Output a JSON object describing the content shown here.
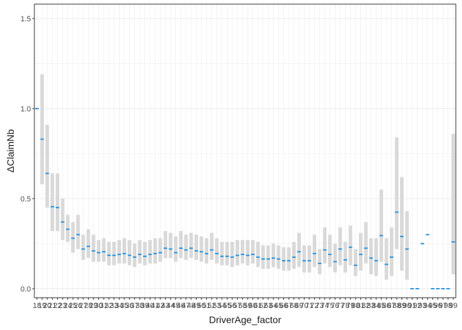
{
  "chart_data": {
    "type": "errorbar",
    "xlabel": "DriverAge_factor",
    "ylabel": "ΔClaimNb",
    "ylim": [
      -0.05,
      1.58
    ],
    "yticks": [
      0.0,
      0.5,
      1.0,
      1.5
    ],
    "ytick_labels": [
      "0.0",
      "0.5",
      "1.0",
      "1.5"
    ],
    "grid": true,
    "colors": {
      "point": "#1f8fe0",
      "band": "#d9d9d9",
      "grid": "#ebebeb",
      "frame": "#333333"
    },
    "categories": [
      "18",
      "19",
      "20",
      "21",
      "22",
      "23",
      "24",
      "25",
      "26",
      "27",
      "28",
      "29",
      "30",
      "31",
      "32",
      "33",
      "34",
      "35",
      "36",
      "37",
      "38",
      "39",
      "40",
      "41",
      "42",
      "43",
      "44",
      "45",
      "46",
      "47",
      "48",
      "49",
      "50",
      "51",
      "52",
      "53",
      "54",
      "55",
      "56",
      "57",
      "58",
      "59",
      "60",
      "61",
      "62",
      "63",
      "64",
      "65",
      "66",
      "67",
      "68",
      "69",
      "70",
      "71",
      "72",
      "73",
      "74",
      "75",
      "76",
      "77",
      "78",
      "79",
      "80",
      "81",
      "82",
      "83",
      "84",
      "85",
      "86",
      "87",
      "88",
      "89",
      "90",
      "91",
      "92",
      "93",
      "94",
      "95",
      "96",
      "97",
      "98",
      "99"
    ],
    "values": [
      1.0,
      0.83,
      0.64,
      0.455,
      0.45,
      0.37,
      0.33,
      0.28,
      0.3,
      0.22,
      0.235,
      0.21,
      0.2,
      0.205,
      0.185,
      0.185,
      0.19,
      0.195,
      0.185,
      0.175,
      0.19,
      0.18,
      0.19,
      0.195,
      0.2,
      0.225,
      0.22,
      0.2,
      0.225,
      0.215,
      0.225,
      0.21,
      0.205,
      0.195,
      0.215,
      0.195,
      0.18,
      0.18,
      0.175,
      0.185,
      0.19,
      0.185,
      0.19,
      0.175,
      0.165,
      0.165,
      0.17,
      0.165,
      0.155,
      0.155,
      0.175,
      0.205,
      0.155,
      0.155,
      0.195,
      0.14,
      0.215,
      0.19,
      0.15,
      0.22,
      0.16,
      0.23,
      0.13,
      0.19,
      0.225,
      0.17,
      0.155,
      0.295,
      0.135,
      0.175,
      0.425,
      0.29,
      0.22,
      0.0,
      0.0,
      0.25,
      0.3,
      0.0,
      0.0,
      0.0,
      0.0,
      0.26
    ],
    "lower": [
      1.0,
      0.58,
      0.45,
      0.32,
      0.32,
      0.27,
      0.26,
      0.2,
      0.22,
      0.16,
      0.17,
      0.15,
      0.15,
      0.15,
      0.13,
      0.13,
      0.14,
      0.14,
      0.13,
      0.12,
      0.14,
      0.13,
      0.14,
      0.14,
      0.15,
      0.17,
      0.17,
      0.15,
      0.17,
      0.16,
      0.17,
      0.16,
      0.15,
      0.14,
      0.16,
      0.14,
      0.13,
      0.13,
      0.12,
      0.13,
      0.14,
      0.13,
      0.14,
      0.12,
      0.11,
      0.11,
      0.12,
      0.11,
      0.1,
      0.1,
      0.11,
      0.12,
      0.09,
      0.09,
      0.12,
      0.08,
      0.14,
      0.12,
      0.09,
      0.13,
      0.09,
      0.13,
      0.07,
      0.1,
      0.14,
      0.08,
      0.07,
      0.15,
      0.05,
      0.07,
      0.22,
      0.1,
      0.05,
      0.0,
      0.0,
      0.25,
      0.3,
      0.0,
      0.0,
      0.0,
      0.0,
      0.08
    ],
    "upper": [
      1.0,
      1.19,
      0.91,
      0.64,
      0.64,
      0.5,
      0.41,
      0.37,
      0.41,
      0.3,
      0.33,
      0.3,
      0.27,
      0.28,
      0.26,
      0.26,
      0.27,
      0.28,
      0.27,
      0.25,
      0.27,
      0.26,
      0.27,
      0.28,
      0.28,
      0.32,
      0.31,
      0.29,
      0.32,
      0.3,
      0.31,
      0.3,
      0.29,
      0.28,
      0.31,
      0.28,
      0.26,
      0.26,
      0.26,
      0.27,
      0.27,
      0.27,
      0.27,
      0.26,
      0.24,
      0.24,
      0.25,
      0.24,
      0.23,
      0.23,
      0.26,
      0.31,
      0.24,
      0.24,
      0.3,
      0.22,
      0.34,
      0.3,
      0.25,
      0.34,
      0.26,
      0.35,
      0.22,
      0.31,
      0.37,
      0.28,
      0.28,
      0.55,
      0.28,
      0.34,
      0.84,
      0.62,
      0.43,
      0.0,
      0.0,
      0.25,
      0.3,
      0.0,
      0.0,
      0.0,
      0.0,
      0.86
    ]
  }
}
